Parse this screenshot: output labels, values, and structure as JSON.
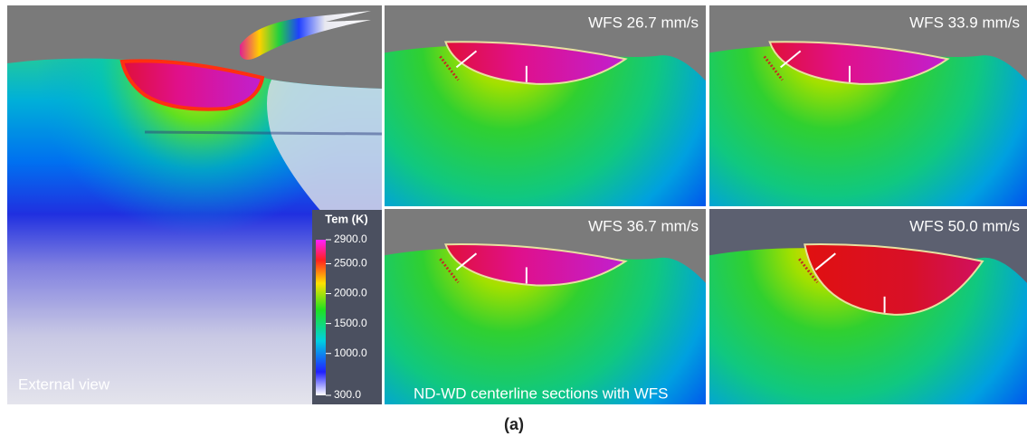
{
  "external_view": {
    "label": "External view"
  },
  "sections": {
    "caption": "ND-WD centerline sections with WFS",
    "panels": [
      {
        "label": "WFS 26.7 mm/s"
      },
      {
        "label": "WFS 33.9 mm/s"
      },
      {
        "label": "WFS 36.7 mm/s"
      },
      {
        "label": "WFS 50.0 mm/s"
      }
    ]
  },
  "colorbar": {
    "title": "Tem (K)",
    "range": [
      300,
      2900
    ],
    "ticks": [
      {
        "value": 2900,
        "label": "2900.0"
      },
      {
        "value": 2500,
        "label": "2500.0"
      },
      {
        "value": 2000,
        "label": "2000.0"
      },
      {
        "value": 1500,
        "label": "1500.0"
      },
      {
        "value": 1000,
        "label": "1000.0"
      },
      {
        "value": 300,
        "label": "300.0"
      }
    ]
  },
  "figure_label": "(a)"
}
